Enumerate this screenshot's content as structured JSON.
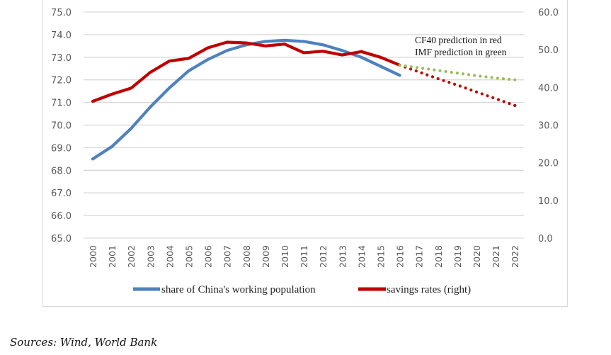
{
  "chart_data": {
    "type": "line",
    "title": "",
    "xlabel": "",
    "ylabel_left": "",
    "ylabel_right": "",
    "x": [
      "2000",
      "2001",
      "2002",
      "2003",
      "2004",
      "2005",
      "2006",
      "2007",
      "2008",
      "2009",
      "2010",
      "2011",
      "2012",
      "2013",
      "2014",
      "2015",
      "2016",
      "2017",
      "2018",
      "2019",
      "2020",
      "2021",
      "2022"
    ],
    "y_left": {
      "range": [
        65.0,
        75.0
      ],
      "ticks": [
        "65.0",
        "66.0",
        "67.0",
        "68.0",
        "69.0",
        "70.0",
        "71.0",
        "72.0",
        "73.0",
        "74.0",
        "75.0"
      ]
    },
    "y_right": {
      "range": [
        0.0,
        60.0
      ],
      "ticks": [
        "0.0",
        "10.0",
        "20.0",
        "30.0",
        "40.0",
        "50.0",
        "60.0"
      ]
    },
    "grid": true,
    "series": [
      {
        "name": "share of China's working population",
        "axis": "left",
        "style": "solid",
        "color": "#4f81bd",
        "values": [
          68.5,
          69.05,
          69.85,
          70.8,
          71.65,
          72.4,
          72.9,
          73.3,
          73.55,
          73.7,
          73.75,
          73.7,
          73.55,
          73.3,
          73.0,
          72.6,
          72.2,
          null,
          null,
          null,
          null,
          null,
          null
        ]
      },
      {
        "name": "savings rates (right)",
        "axis": "right",
        "style": "solid",
        "color": "#c00000",
        "values": [
          36.3,
          38.2,
          39.8,
          44.0,
          47.0,
          47.7,
          50.5,
          52.0,
          51.8,
          51.0,
          51.5,
          49.2,
          49.6,
          48.6,
          49.5,
          48.0,
          45.9,
          null,
          null,
          null,
          null,
          null,
          null
        ]
      },
      {
        "name": "CF40 prediction",
        "axis": "right",
        "style": "dotted",
        "color": "#c00000",
        "in_legend": false,
        "values": [
          null,
          null,
          null,
          null,
          null,
          null,
          null,
          null,
          null,
          null,
          null,
          null,
          null,
          null,
          null,
          null,
          45.9,
          44.1,
          42.3,
          40.6,
          38.8,
          37.0,
          35.2
        ]
      },
      {
        "name": "IMF prediction",
        "axis": "right",
        "style": "dotted",
        "color": "#9bbb59",
        "in_legend": false,
        "values": [
          null,
          null,
          null,
          null,
          null,
          null,
          null,
          null,
          null,
          null,
          null,
          null,
          null,
          null,
          null,
          null,
          45.9,
          45.2,
          44.5,
          43.8,
          43.1,
          42.5,
          42.0
        ]
      }
    ],
    "annotations": [
      "CF40 prediction in red",
      "IMF prediction in green"
    ],
    "legend": {
      "placement": "bottom",
      "entries": [
        {
          "label": "share of China's working population",
          "color": "#4f81bd"
        },
        {
          "label": "savings rates (right)",
          "color": "#c00000"
        }
      ]
    }
  },
  "source_note": "Sources: Wind, World Bank"
}
